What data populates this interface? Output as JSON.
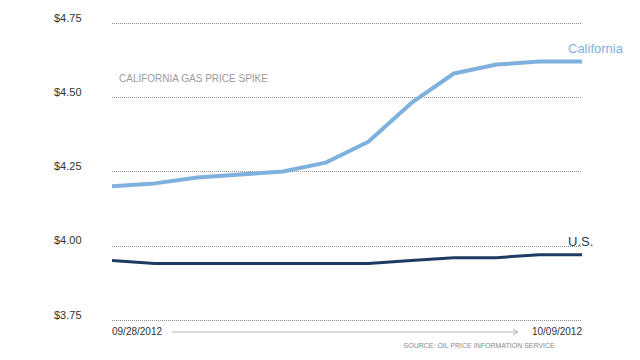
{
  "chart_data": {
    "type": "line",
    "title": "CALIFORNIA GAS PRICE SPIKE",
    "source": "SOURCE: OIL PRICE INFORMATION SERVICE",
    "categories": [
      "09/28/2012",
      null,
      null,
      null,
      null,
      null,
      null,
      null,
      null,
      null,
      null,
      "10/09/2012"
    ],
    "series": [
      {
        "name": "California",
        "color": "#7fb1de",
        "values": [
          4.2,
          4.21,
          4.23,
          4.24,
          4.25,
          4.28,
          4.35,
          4.48,
          4.58,
          4.61,
          4.62,
          4.62
        ]
      },
      {
        "name": "U.S.",
        "color": "#1d3c63",
        "values": [
          3.95,
          3.94,
          3.94,
          3.94,
          3.94,
          3.94,
          3.94,
          3.95,
          3.96,
          3.96,
          3.97,
          3.97
        ]
      }
    ],
    "ylim": [
      3.75,
      4.75
    ],
    "yticks": [
      {
        "value": 3.75,
        "label": "$3.75"
      },
      {
        "value": 4.0,
        "label": "$4.00"
      },
      {
        "value": 4.25,
        "label": "$4.25"
      },
      {
        "value": 4.5,
        "label": "$4.50"
      },
      {
        "value": 4.75,
        "label": "$4.75"
      }
    ],
    "grid": true
  }
}
